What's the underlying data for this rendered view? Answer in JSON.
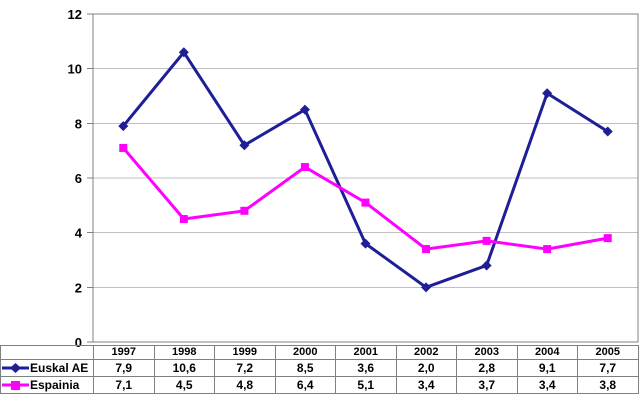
{
  "chart_data": {
    "type": "line",
    "title": "",
    "xlabel": "",
    "ylabel": "",
    "categories": [
      "1997",
      "1998",
      "1999",
      "2000",
      "2001",
      "2002",
      "2003",
      "2004",
      "2005"
    ],
    "series": [
      {
        "name": "Euskal AE",
        "color": "#1E1E96",
        "marker": "diamond",
        "values": [
          7.9,
          10.6,
          7.2,
          8.5,
          3.6,
          2.0,
          2.8,
          9.1,
          7.7
        ],
        "labels": [
          "7,9",
          "10,6",
          "7,2",
          "8,5",
          "3,6",
          "2,0",
          "2,8",
          "9,1",
          "7,7"
        ]
      },
      {
        "name": "Espainia",
        "color": "#FF00FF",
        "marker": "square",
        "values": [
          7.1,
          4.5,
          4.8,
          6.4,
          5.1,
          3.4,
          3.7,
          3.4,
          3.8
        ],
        "labels": [
          "7,1",
          "4,5",
          "4,8",
          "6,4",
          "5,1",
          "3,4",
          "3,7",
          "3,4",
          "3,8"
        ]
      }
    ],
    "ylim": [
      0,
      12
    ],
    "ytick_step": 2,
    "yticks": [
      "0",
      "2",
      "4",
      "6",
      "8",
      "10",
      "12"
    ],
    "grid": true,
    "legend_position": "table-left",
    "colors": {
      "gridline": "#C0C0C0",
      "axis": "#808080",
      "table_border": "#808080",
      "background": "#FFFFFF",
      "text": "#000000"
    }
  }
}
